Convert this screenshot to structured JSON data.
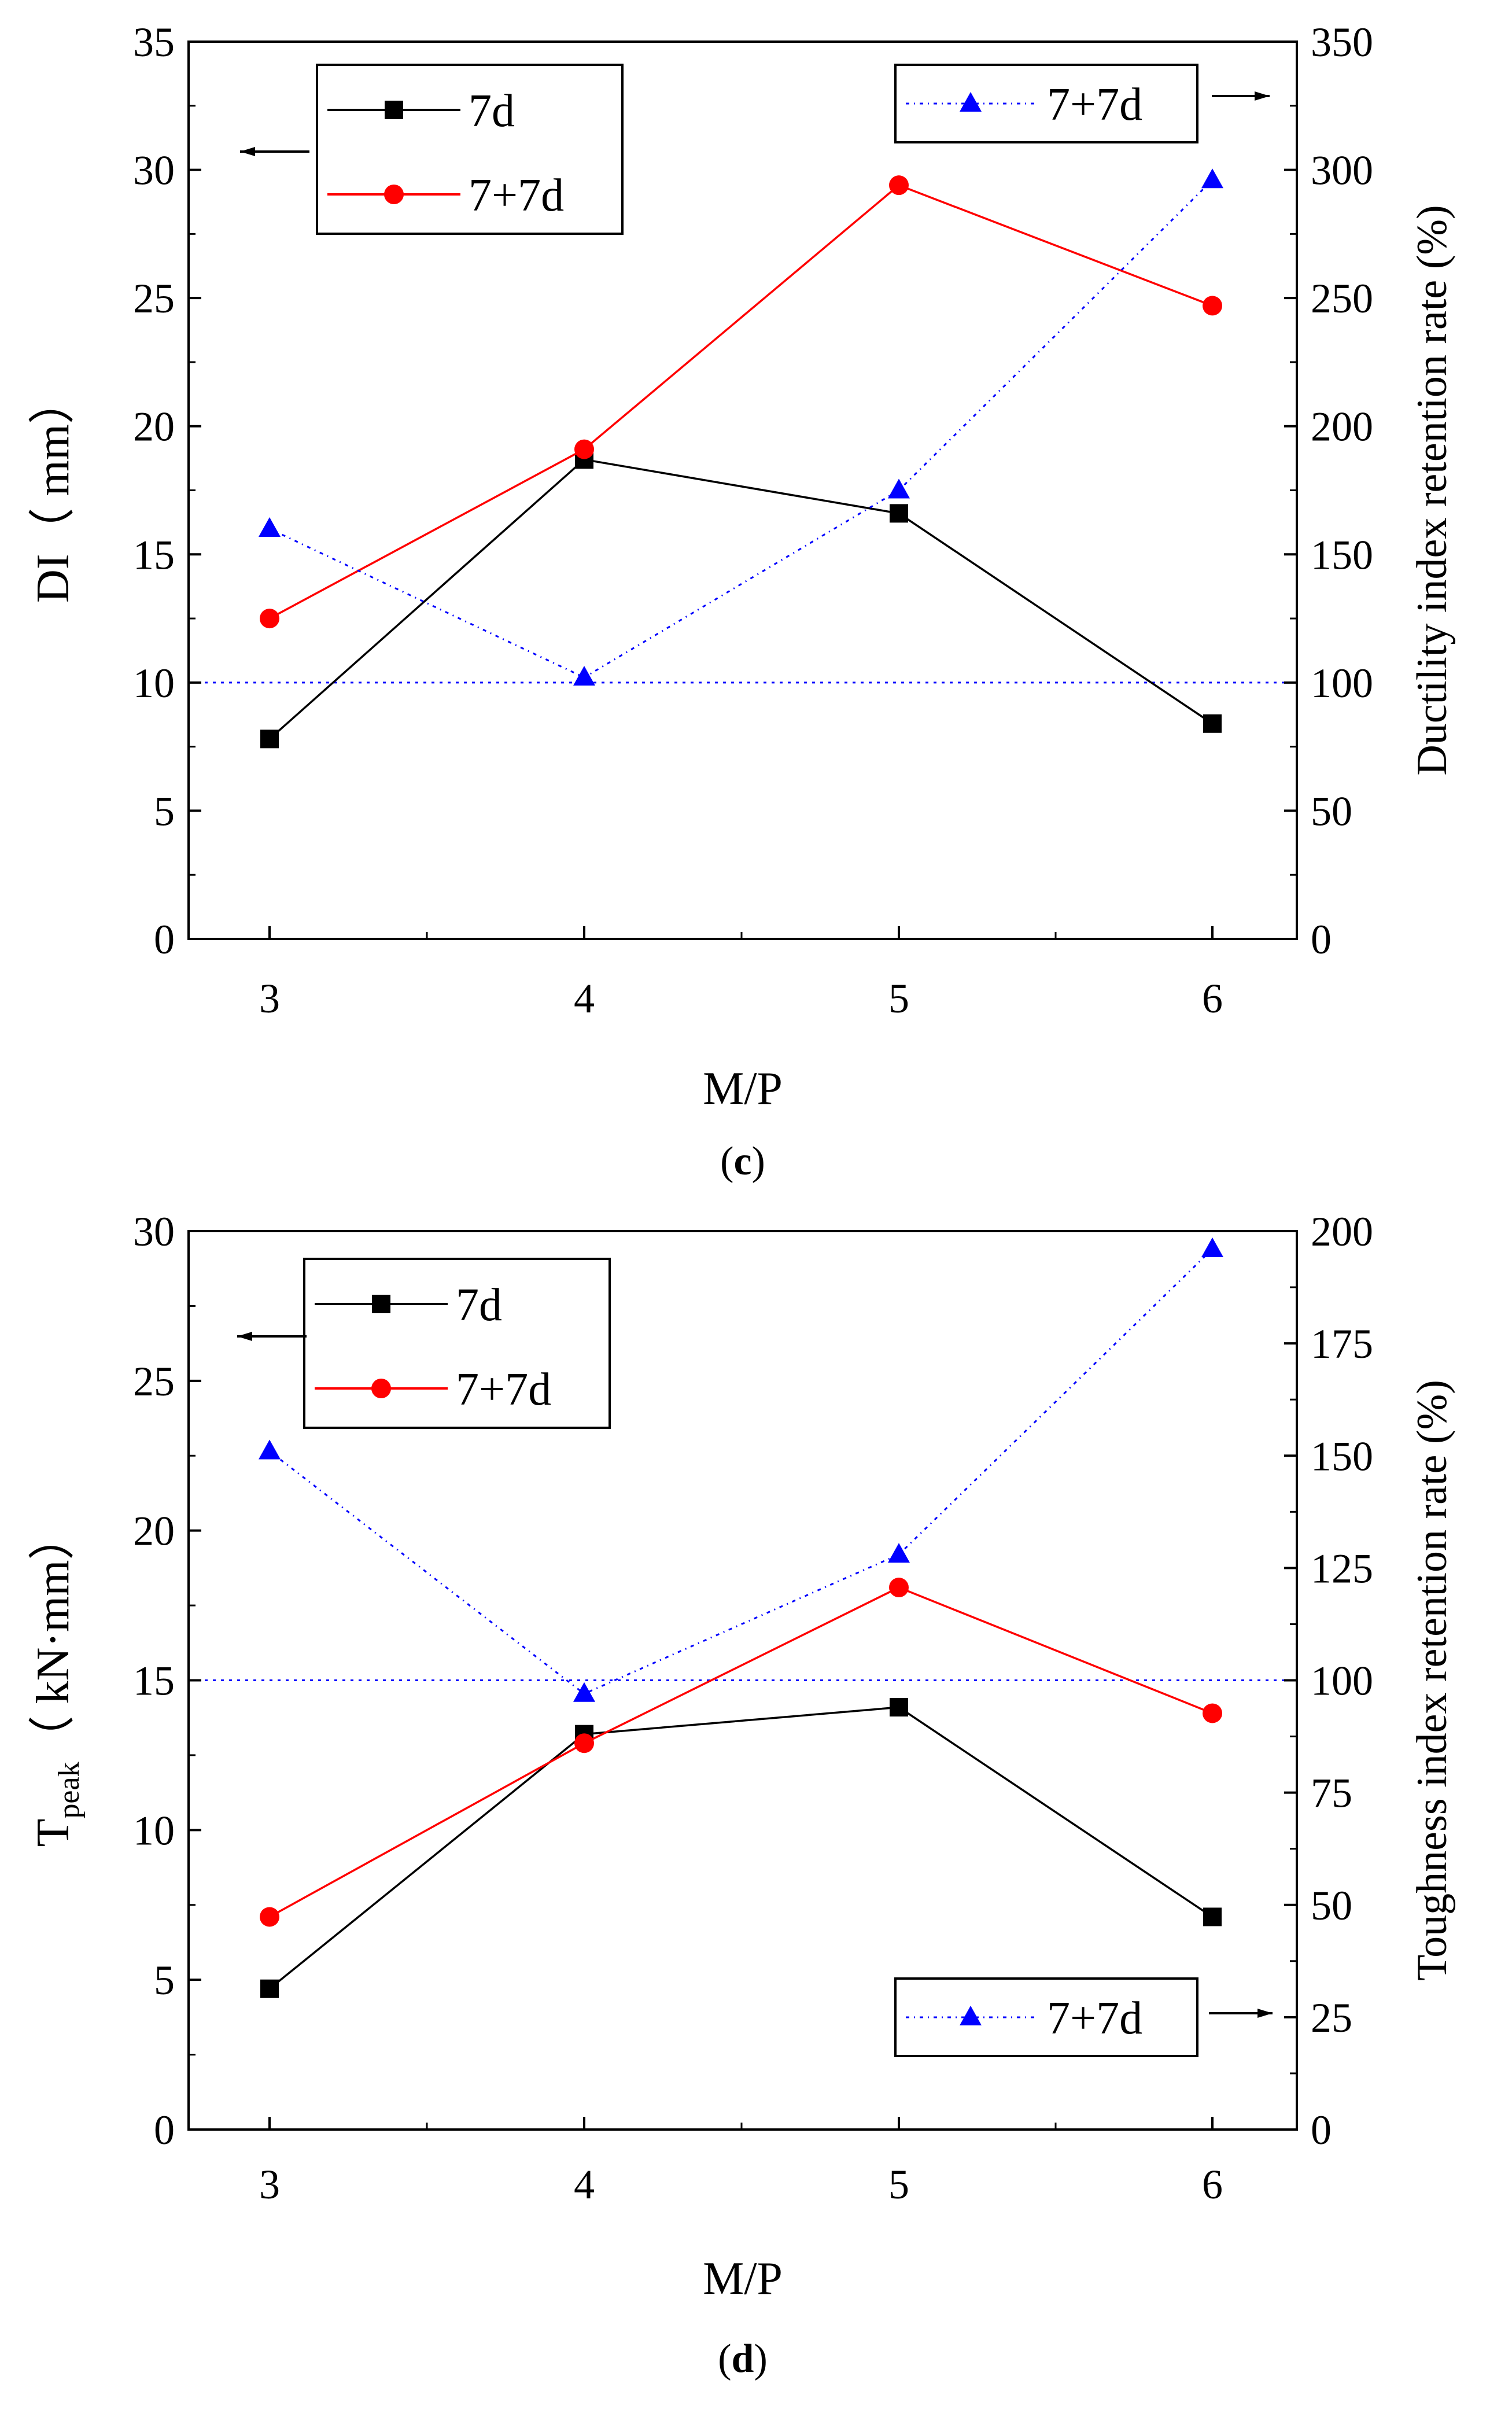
{
  "colors": {
    "series_7d": "#000000",
    "series_77d": "#ff0000",
    "series_ratio": "#0000ff",
    "axis": "#000000"
  },
  "chart_data": [
    {
      "type": "line",
      "panel_caption": "c",
      "title": "",
      "xlabel": "M/P",
      "ylabel": "DI（ mm）",
      "ylabel_right": "Ductility index retention rate (%)",
      "categories": [
        "3",
        "4",
        "5",
        "6"
      ],
      "x_ticks": [
        "3",
        "4",
        "5",
        "6"
      ],
      "ylim": [
        0,
        35
      ],
      "y_ticks": [
        "0",
        "5",
        "10",
        "15",
        "20",
        "25",
        "30",
        "35"
      ],
      "ylim_right": [
        0,
        350
      ],
      "y_ticks_right": [
        "0",
        "50",
        "100",
        "150",
        "200",
        "250",
        "300",
        "350"
      ],
      "reference_line_right": 100,
      "series": [
        {
          "name": "7d",
          "axis": "left",
          "marker": "square",
          "values": [
            7.8,
            18.7,
            16.6,
            8.4
          ]
        },
        {
          "name": "7+7d",
          "axis": "left",
          "marker": "circle",
          "values": [
            12.5,
            19.1,
            29.4,
            24.7
          ]
        },
        {
          "name": "7+7d",
          "axis": "right",
          "marker": "triangle",
          "values": [
            160,
            102,
            175,
            296
          ]
        }
      ],
      "legend_left": [
        "7d",
        "7+7d"
      ],
      "legend_right": [
        "7+7d"
      ]
    },
    {
      "type": "line",
      "panel_caption": "d",
      "title": "",
      "xlabel": "M/P",
      "ylabel_main": "T",
      "ylabel_sub": "peak",
      "ylabel_rest": "（ kN·mm）",
      "ylabel_right": "Toughness index retention rate (%)",
      "categories": [
        "3",
        "4",
        "5",
        "6"
      ],
      "x_ticks": [
        "3",
        "4",
        "5",
        "6"
      ],
      "ylim": [
        0,
        30
      ],
      "y_ticks": [
        "0",
        "5",
        "10",
        "15",
        "20",
        "25",
        "30"
      ],
      "ylim_right": [
        0,
        200
      ],
      "y_ticks_right": [
        "0",
        "25",
        "50",
        "75",
        "100",
        "125",
        "150",
        "175",
        "200"
      ],
      "reference_line_right": 100,
      "series": [
        {
          "name": "7d",
          "axis": "left",
          "marker": "square",
          "values": [
            4.7,
            13.2,
            14.1,
            7.1
          ]
        },
        {
          "name": "7+7d",
          "axis": "left",
          "marker": "circle",
          "values": [
            7.1,
            12.9,
            18.1,
            13.9
          ]
        },
        {
          "name": "7+7d",
          "axis": "right",
          "marker": "triangle",
          "values": [
            151,
            97,
            128,
            196
          ]
        }
      ],
      "legend_left": [
        "7d",
        "7+7d"
      ],
      "legend_right": [
        "7+7d"
      ]
    }
  ]
}
